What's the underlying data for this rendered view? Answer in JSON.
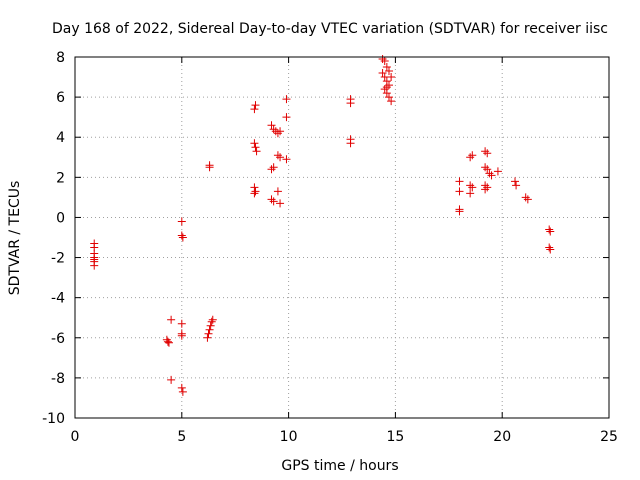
{
  "chart_data": {
    "type": "scatter",
    "title": "Day 168 of 2022, Sidereal Day-to-day VTEC variation (SDTVAR) for receiver iisc",
    "xlabel": "GPS time / hours",
    "ylabel": "SDTVAR / TECUs",
    "xlim": [
      0,
      25
    ],
    "ylim": [
      -10,
      8
    ],
    "xticks": [
      "0",
      "5",
      "10",
      "15",
      "20",
      "25"
    ],
    "yticks": [
      "-10",
      "-8",
      "-6",
      "-4",
      "-2",
      "0",
      "2",
      "4",
      "6",
      "8"
    ],
    "grid": true,
    "marker": "plus",
    "color": "#e00000",
    "series": [
      {
        "name": "SDTVAR",
        "points": [
          [
            0.9,
            -1.3
          ],
          [
            0.9,
            -1.5
          ],
          [
            0.9,
            -1.8
          ],
          [
            0.9,
            -2.0
          ],
          [
            0.9,
            -2.1
          ],
          [
            0.9,
            -2.2
          ],
          [
            0.9,
            -2.4
          ],
          [
            4.3,
            -6.1
          ],
          [
            4.35,
            -6.2
          ],
          [
            4.4,
            -6.25
          ],
          [
            4.5,
            -5.1
          ],
          [
            4.5,
            -8.1
          ],
          [
            5.0,
            -5.3
          ],
          [
            5.0,
            -5.8
          ],
          [
            5.0,
            -5.9
          ],
          [
            5.0,
            -8.5
          ],
          [
            5.05,
            -8.7
          ],
          [
            5.0,
            -0.2
          ],
          [
            5.0,
            -0.9
          ],
          [
            5.05,
            -1.0
          ],
          [
            6.2,
            -6.0
          ],
          [
            6.25,
            -5.8
          ],
          [
            6.3,
            -5.6
          ],
          [
            6.35,
            -5.4
          ],
          [
            6.4,
            -5.2
          ],
          [
            6.45,
            -5.1
          ],
          [
            6.3,
            2.5
          ],
          [
            6.3,
            2.6
          ],
          [
            8.4,
            5.4
          ],
          [
            8.45,
            5.6
          ],
          [
            8.4,
            3.7
          ],
          [
            8.45,
            3.5
          ],
          [
            8.5,
            3.3
          ],
          [
            8.4,
            1.5
          ],
          [
            8.45,
            1.3
          ],
          [
            8.4,
            1.2
          ],
          [
            9.2,
            4.6
          ],
          [
            9.3,
            4.4
          ],
          [
            9.4,
            4.3
          ],
          [
            9.5,
            4.2
          ],
          [
            9.6,
            4.3
          ],
          [
            9.2,
            2.4
          ],
          [
            9.3,
            2.5
          ],
          [
            9.5,
            3.1
          ],
          [
            9.6,
            3.0
          ],
          [
            9.2,
            0.9
          ],
          [
            9.3,
            0.8
          ],
          [
            9.5,
            1.3
          ],
          [
            9.6,
            0.7
          ],
          [
            9.9,
            5.9
          ],
          [
            9.9,
            5.0
          ],
          [
            9.9,
            2.9
          ],
          [
            12.9,
            5.9
          ],
          [
            12.9,
            5.7
          ],
          [
            12.9,
            3.9
          ],
          [
            12.9,
            3.7
          ],
          [
            14.4,
            7.9
          ],
          [
            14.5,
            7.8
          ],
          [
            14.6,
            7.5
          ],
          [
            14.4,
            7.2
          ],
          [
            14.5,
            7.0
          ],
          [
            14.6,
            6.8
          ],
          [
            14.7,
            6.6
          ],
          [
            14.5,
            6.4
          ],
          [
            14.6,
            6.2
          ],
          [
            14.7,
            6.0
          ],
          [
            14.8,
            5.8
          ],
          [
            14.8,
            7.0
          ],
          [
            14.7,
            7.3
          ],
          [
            14.6,
            6.5
          ],
          [
            18.0,
            1.8
          ],
          [
            18.0,
            1.3
          ],
          [
            18.0,
            0.4
          ],
          [
            18.0,
            0.3
          ],
          [
            18.5,
            1.6
          ],
          [
            18.5,
            1.2
          ],
          [
            18.6,
            1.5
          ],
          [
            18.6,
            3.1
          ],
          [
            18.5,
            3.0
          ],
          [
            19.2,
            3.3
          ],
          [
            19.3,
            3.2
          ],
          [
            19.2,
            2.5
          ],
          [
            19.3,
            2.4
          ],
          [
            19.4,
            2.2
          ],
          [
            19.5,
            2.1
          ],
          [
            19.2,
            1.6
          ],
          [
            19.2,
            1.4
          ],
          [
            19.3,
            1.5
          ],
          [
            19.8,
            2.3
          ],
          [
            20.6,
            1.8
          ],
          [
            20.65,
            1.6
          ],
          [
            21.1,
            1.0
          ],
          [
            21.2,
            0.9
          ],
          [
            22.2,
            -0.6
          ],
          [
            22.25,
            -0.7
          ],
          [
            22.2,
            -1.5
          ],
          [
            22.25,
            -1.6
          ]
        ]
      }
    ]
  }
}
